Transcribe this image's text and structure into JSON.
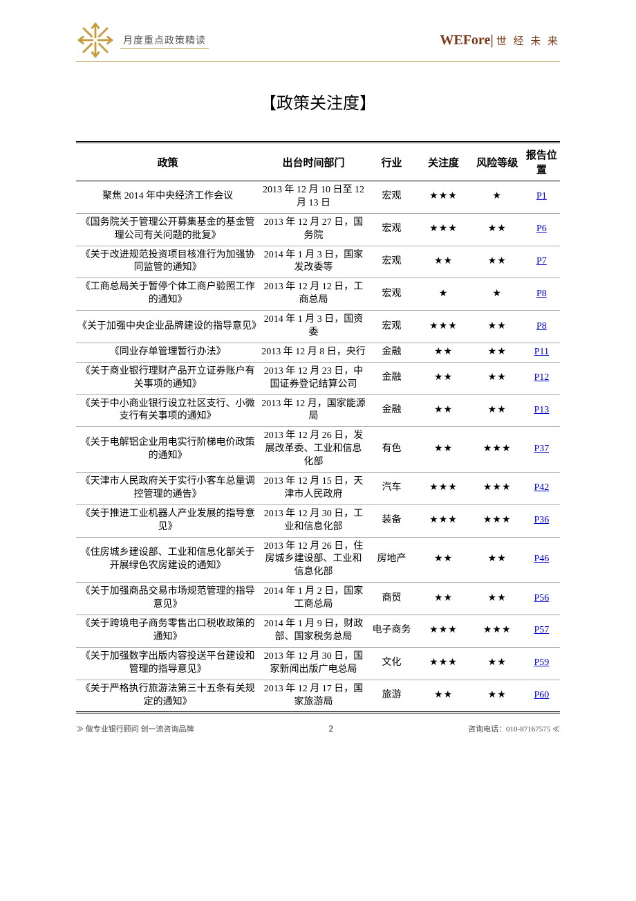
{
  "header": {
    "subtitle": "月度重点政策精读",
    "brand_main": "WEFore",
    "brand_cn": "世 经 未 来"
  },
  "title": "【政策关注度】",
  "columns": {
    "policy": "政策",
    "dept": "出台时间部门",
    "industry": "行业",
    "attention": "关注度",
    "risk": "风险等级",
    "position": "报告位置"
  },
  "rows": [
    {
      "policy": "聚焦 2014 年中央经济工作会议",
      "dept": "2013 年 12 月 10 日至 12 月 13 日",
      "industry": "宏观",
      "attention": "★★★",
      "risk": "★",
      "pos": "P1"
    },
    {
      "policy": "《国务院关于管理公开募集基金的基金管理公司有关问题的批复》",
      "dept": "2013 年 12 月 27 日，国务院",
      "industry": "宏观",
      "attention": "★★★",
      "risk": "★★",
      "pos": "P6"
    },
    {
      "policy": "《关于改进规范投资项目核准行为加强协同监管的通知》",
      "dept": "2014 年 1 月 3 日，国家发改委等",
      "industry": "宏观",
      "attention": "★★",
      "risk": "★★",
      "pos": "P7"
    },
    {
      "policy": "《工商总局关于暂停个体工商户验照工作的通知》",
      "dept": "2013 年 12 月 12 日，工商总局",
      "industry": "宏观",
      "attention": "★",
      "risk": "★",
      "pos": "P8"
    },
    {
      "policy": "《关于加强中央企业品牌建设的指导意见》",
      "dept": "2014 年 1 月 3 日，国资委",
      "industry": "宏观",
      "attention": "★★★",
      "risk": "★★",
      "pos": "P8"
    },
    {
      "policy": "《同业存单管理暂行办法》",
      "dept": "2013 年 12 月 8 日，央行",
      "industry": "金融",
      "attention": "★★",
      "risk": "★★",
      "pos": "P11"
    },
    {
      "policy": "《关于商业银行理财产品开立证券账户有关事项的通知》",
      "dept": "2013 年 12 月 23 日，中国证券登记结算公司",
      "industry": "金融",
      "attention": "★★",
      "risk": "★★",
      "pos": "P12"
    },
    {
      "policy": "《关于中小商业银行设立社区支行、小微支行有关事项的通知》",
      "dept": "2013 年 12 月，国家能源局",
      "industry": "金融",
      "attention": "★★",
      "risk": "★★",
      "pos": "P13"
    },
    {
      "policy": "《关于电解铝企业用电实行阶梯电价政策的通知》",
      "dept": "2013 年 12 月 26 日，发展改革委、工业和信息化部",
      "industry": "有色",
      "attention": "★★",
      "risk": "★★★",
      "pos": "P37"
    },
    {
      "policy": "《天津市人民政府关于实行小客车总量调控管理的通告》",
      "dept": "2013 年 12 月 15 日，天津市人民政府",
      "industry": "汽车",
      "attention": "★★★",
      "risk": "★★★",
      "pos": "P42"
    },
    {
      "policy": "《关于推进工业机器人产业发展的指导意见》",
      "dept": "2013 年 12 月 30 日，工业和信息化部",
      "industry": "装备",
      "attention": "★★★",
      "risk": "★★★",
      "pos": "P36"
    },
    {
      "policy": "《住房城乡建设部、工业和信息化部关于开展绿色农房建设的通知》",
      "dept": "2013 年 12 月 26 日，住房城乡建设部、工业和信息化部",
      "industry": "房地产",
      "attention": "★★",
      "risk": "★★",
      "pos": "P46"
    },
    {
      "policy": "《关于加强商品交易市场规范管理的指导意见》",
      "dept": "2014 年 1 月 2 日，国家工商总局",
      "industry": "商贸",
      "attention": "★★",
      "risk": "★★",
      "pos": "P56"
    },
    {
      "policy": "《关于跨境电子商务零售出口税收政策的通知》",
      "dept": "2014 年 1 月 9 日，财政部、国家税务总局",
      "industry": "电子商务",
      "attention": "★★★",
      "risk": "★★★",
      "pos": "P57"
    },
    {
      "policy": "《关于加强数字出版内容投送平台建设和管理的指导意见》",
      "dept": "2013 年 12 月 30 日，国家新闻出版广电总局",
      "industry": "文化",
      "attention": "★★★",
      "risk": "★★",
      "pos": "P59"
    },
    {
      "policy": "《关于严格执行旅游法第三十五条有关规定的通知》",
      "dept": "2013 年 12 月 17 日，国家旅游局",
      "industry": "旅游",
      "attention": "★★",
      "risk": "★★",
      "pos": "P60"
    }
  ],
  "footer": {
    "slogan": "做专业银行顾问  创一流咨询品牌",
    "page_number": "2",
    "phone": "咨询电话：010-87167575"
  },
  "colors": {
    "accent": "#c0a050",
    "brand": "#7a3b1a",
    "link": "#0000cc"
  }
}
